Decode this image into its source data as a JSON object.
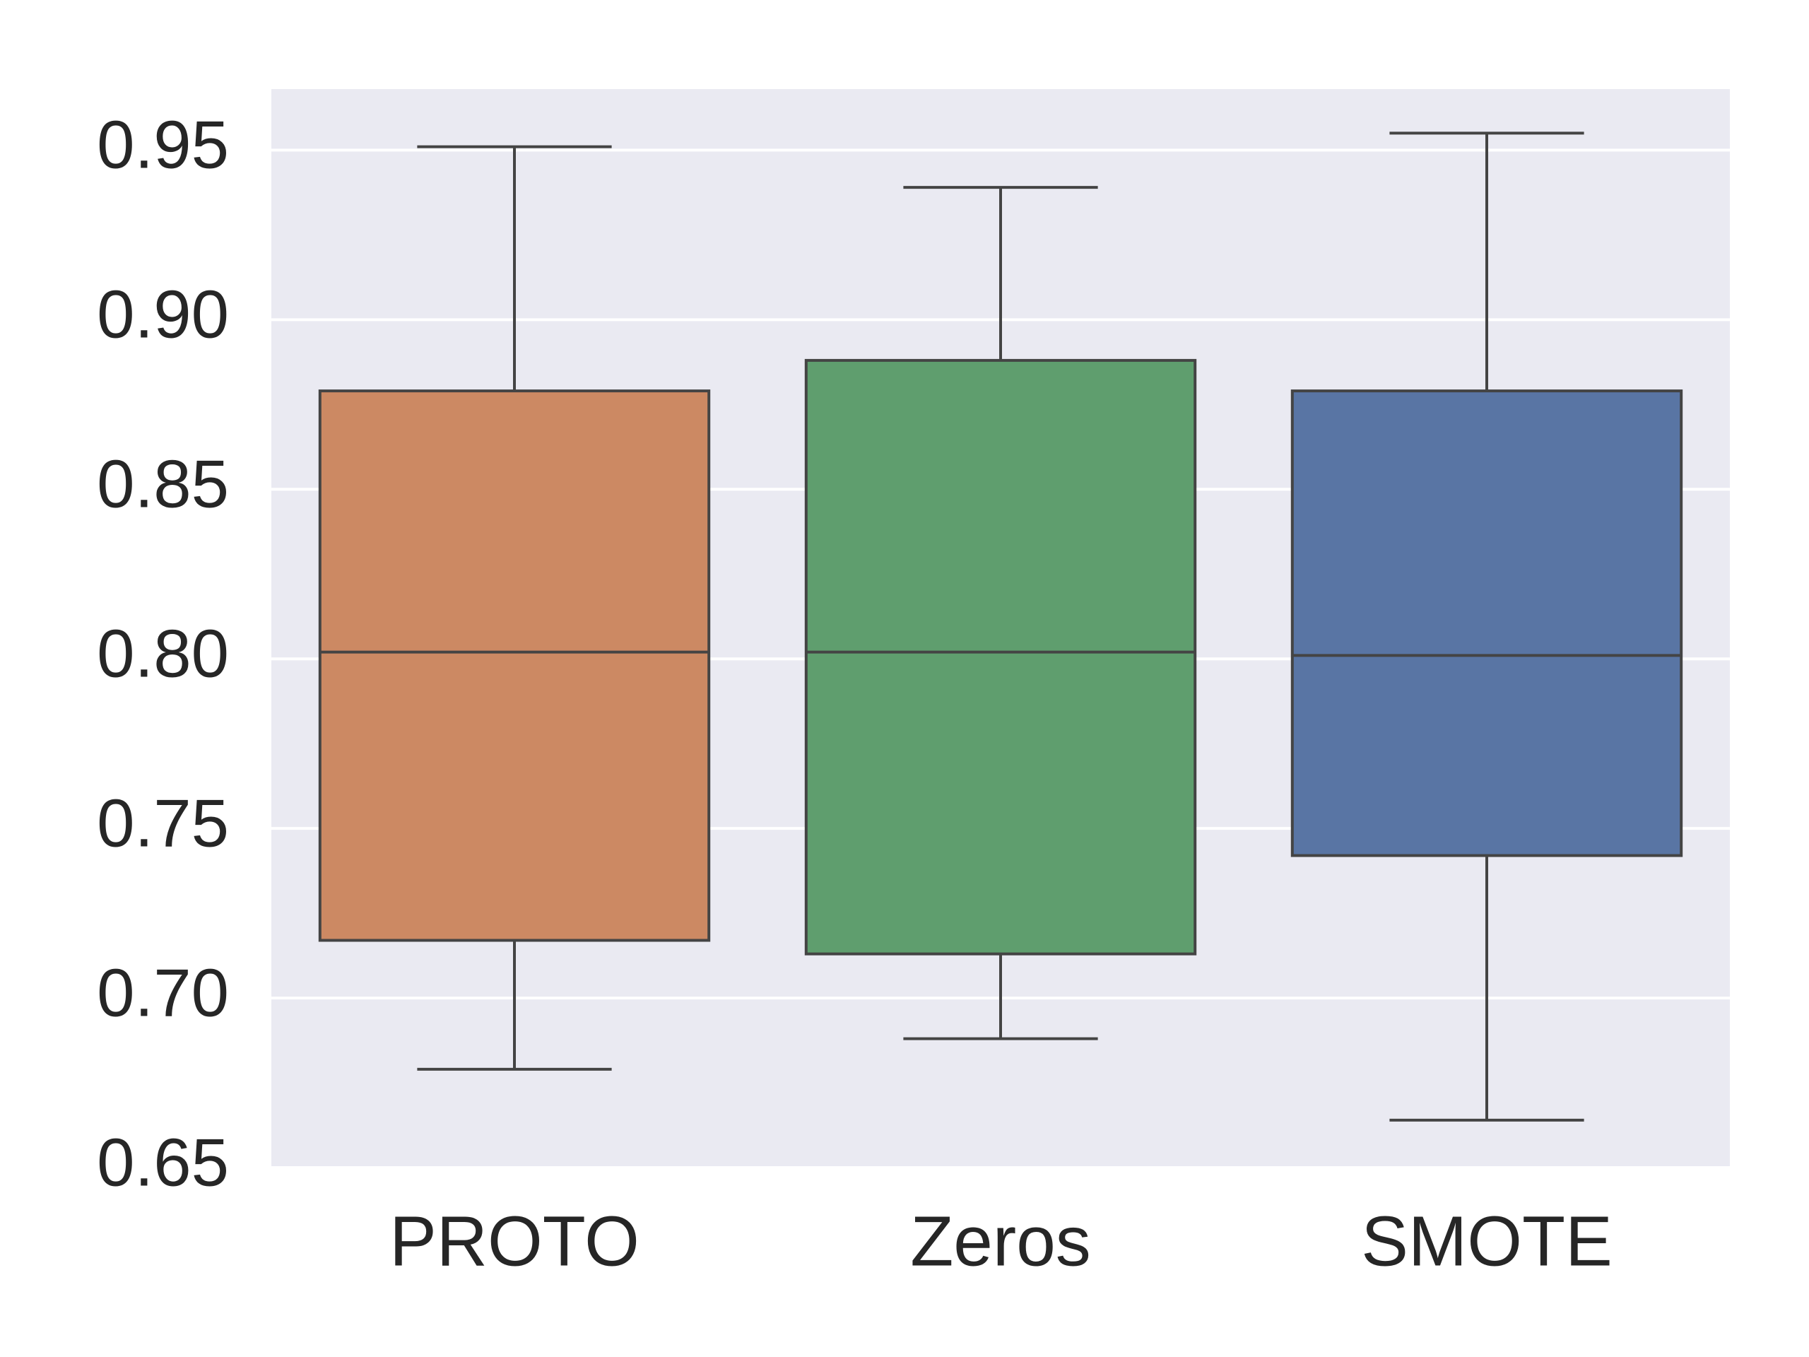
{
  "chart_data": {
    "type": "box",
    "categories": [
      "PROTO",
      "Zeros",
      "SMOTE"
    ],
    "boxes": [
      {
        "category": "PROTO",
        "whisker_low": 0.679,
        "q1": 0.717,
        "median": 0.802,
        "q3": 0.879,
        "whisker_high": 0.951,
        "color": "#cc8963"
      },
      {
        "category": "Zeros",
        "whisker_low": 0.688,
        "q1": 0.713,
        "median": 0.802,
        "q3": 0.888,
        "whisker_high": 0.939,
        "color": "#5f9e6e"
      },
      {
        "category": "SMOTE",
        "whisker_low": 0.664,
        "q1": 0.742,
        "median": 0.801,
        "q3": 0.879,
        "whisker_high": 0.955,
        "color": "#5975a4"
      }
    ],
    "yticks": [
      "0.65",
      "0.70",
      "0.75",
      "0.80",
      "0.85",
      "0.90",
      "0.95"
    ],
    "ylim": [
      0.65,
      0.968
    ],
    "grid": "horizontal",
    "background_color": "#eaeaf2",
    "line_color": "#444444"
  }
}
